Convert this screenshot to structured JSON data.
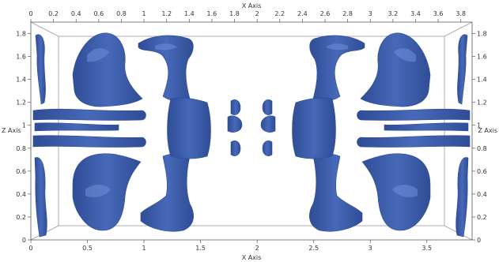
{
  "chart_data": {
    "type": "3d-isosurface",
    "x_axis": {
      "title": "X Axis",
      "range": [
        0,
        3.9
      ],
      "ticks_top": [
        "0",
        "0.2",
        "0.4",
        "0.6",
        "0.8",
        "1",
        "1.2",
        "1.4",
        "1.6",
        "1.8",
        "2",
        "2.2",
        "2.4",
        "2.6",
        "2.8",
        "3",
        "3.2",
        "3.4",
        "3.6",
        "3.8"
      ],
      "ticks_bottom": [
        "0",
        "0.5",
        "1",
        "1.5",
        "2",
        "2.5",
        "3",
        "3.5"
      ]
    },
    "z_axis": {
      "title": "Z Axis",
      "range": [
        0,
        1.9
      ],
      "ticks_left": [
        "0",
        "0.2",
        "0.4",
        "0.6",
        "0.8",
        "1",
        "1.2",
        "1.4",
        "1.6",
        "1.8"
      ],
      "ticks_right": [
        "0",
        "0.2",
        "0.4",
        "0.6",
        "0.8",
        "1",
        "1.2",
        "1.4",
        "1.6",
        "1.8"
      ]
    },
    "surface_color": "#4466b8",
    "surface_shadow_color": "#2c4a94",
    "surface_highlight_color": "#6f8fd8",
    "symmetry": "mirror-symmetric about x = 1.95",
    "background": "#ffffff",
    "grid": false
  }
}
